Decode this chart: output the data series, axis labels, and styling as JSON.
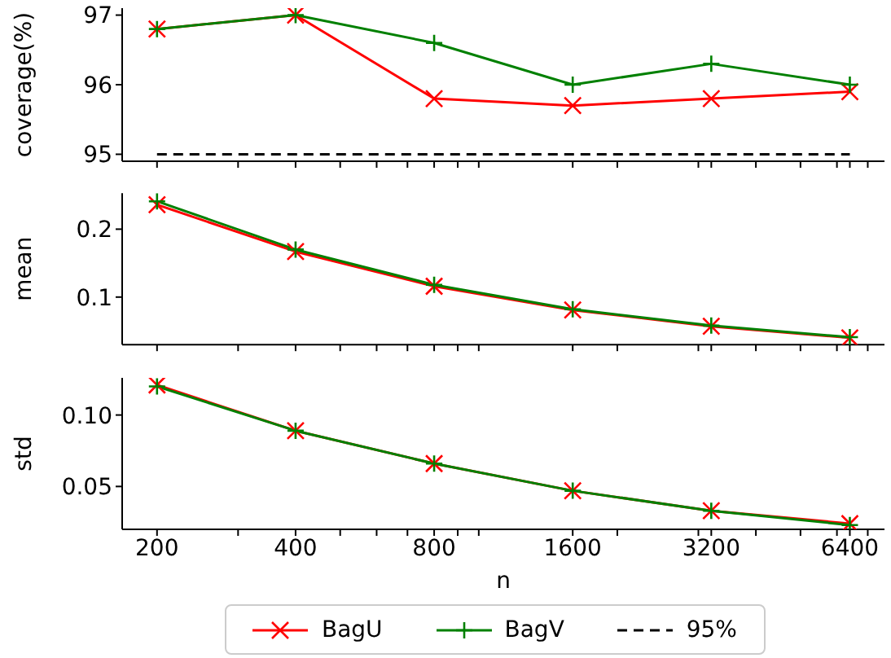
{
  "chart_data": [
    {
      "type": "line",
      "ylabel": "coverage(%)",
      "x": [
        200,
        400,
        800,
        1600,
        3200,
        6400
      ],
      "log": "x",
      "xlim": [
        168,
        7611
      ],
      "xticks": [
        200,
        {
          "value": 300,
          "label": null
        },
        400,
        {
          "value": 500,
          "label": null
        },
        {
          "value": 600,
          "label": null
        },
        {
          "value": 700,
          "label": null
        },
        800,
        {
          "value": 900,
          "label": null
        },
        {
          "value": 1000,
          "label": null
        },
        1600,
        {
          "value": 2000,
          "label": null
        },
        {
          "value": 3000,
          "label": null
        },
        3200,
        {
          "value": 4000,
          "label": null
        },
        {
          "value": 5000,
          "label": null
        },
        {
          "value": 6000,
          "label": null
        },
        6400,
        {
          "value": 7000,
          "label": null
        }
      ],
      "ylim": [
        94.9,
        97.1
      ],
      "yticks": [
        95,
        96,
        97
      ],
      "tick_labels": "y",
      "legend": "bottom",
      "series": [
        {
          "name": "BagU",
          "color": "#ff0000",
          "marker": "x",
          "line_style": "solid",
          "values": [
            96.8,
            97.0,
            95.8,
            95.7,
            95.8,
            95.9
          ]
        },
        {
          "name": "BagV",
          "color": "#008000",
          "marker": "cross",
          "line_style": "solid",
          "values": [
            96.8,
            97.0,
            96.6,
            96.0,
            96.3,
            96.0
          ]
        },
        {
          "name": "95%",
          "color": "#000000",
          "marker": "none",
          "line_style": "dashed",
          "values": [
            95,
            95,
            95,
            95,
            95,
            95
          ]
        }
      ]
    },
    {
      "type": "line",
      "ylabel": "mean",
      "x": [
        200,
        400,
        800,
        1600,
        3200,
        6400
      ],
      "log": "x",
      "xlim": [
        168,
        7611
      ],
      "xticks": [
        200,
        {
          "value": 300,
          "label": null
        },
        400,
        {
          "value": 500,
          "label": null
        },
        {
          "value": 600,
          "label": null
        },
        {
          "value": 700,
          "label": null
        },
        800,
        {
          "value": 900,
          "label": null
        },
        {
          "value": 1000,
          "label": null
        },
        1600,
        {
          "value": 2000,
          "label": null
        },
        {
          "value": 3000,
          "label": null
        },
        3200,
        {
          "value": 4000,
          "label": null
        },
        {
          "value": 5000,
          "label": null
        },
        {
          "value": 6000,
          "label": null
        },
        6400,
        {
          "value": 7000,
          "label": null
        }
      ],
      "ylim": [
        0.03,
        0.253
      ],
      "yticks": [
        0.1,
        0.2
      ],
      "tick_labels": "y",
      "series": [
        {
          "color": "#ff0000",
          "marker": "x",
          "line_style": "solid",
          "values": [
            0.236,
            0.167,
            0.116,
            0.081,
            0.057,
            0.04
          ]
        },
        {
          "color": "#008000",
          "marker": "cross",
          "line_style": "solid",
          "values": [
            0.241,
            0.17,
            0.118,
            0.082,
            0.058,
            0.041
          ]
        }
      ]
    },
    {
      "type": "line",
      "ylabel": "std",
      "xlabel": "n",
      "x": [
        200,
        400,
        800,
        1600,
        3200,
        6400
      ],
      "log": "x",
      "xlim": [
        168,
        7611
      ],
      "xticks": [
        200,
        {
          "value": 300,
          "label": null
        },
        400,
        {
          "value": 500,
          "label": null
        },
        {
          "value": 600,
          "label": null
        },
        {
          "value": 700,
          "label": null
        },
        800,
        {
          "value": 900,
          "label": null
        },
        {
          "value": 1000,
          "label": null
        },
        1600,
        {
          "value": 2000,
          "label": null
        },
        {
          "value": 3000,
          "label": null
        },
        3200,
        {
          "value": 4000,
          "label": null
        },
        {
          "value": 5000,
          "label": null
        },
        {
          "value": 6000,
          "label": null
        },
        6400,
        {
          "value": 7000,
          "label": null
        }
      ],
      "ylim": [
        0.02,
        0.126
      ],
      "yticks": [
        {
          "value": 0.05,
          "label": "0.05"
        },
        {
          "value": 0.1,
          "label": "0.10"
        }
      ],
      "series": [
        {
          "color": "#ff0000",
          "marker": "x",
          "line_style": "solid",
          "values": [
            0.121,
            0.089,
            0.066,
            0.047,
            0.033,
            0.024
          ]
        },
        {
          "color": "#008000",
          "marker": "cross",
          "line_style": "solid",
          "values": [
            0.12,
            0.089,
            0.066,
            0.047,
            0.033,
            0.023
          ]
        }
      ]
    }
  ]
}
